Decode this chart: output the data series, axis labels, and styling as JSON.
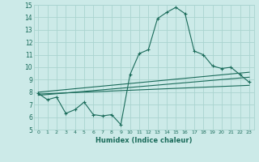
{
  "xlabel": "Humidex (Indice chaleur)",
  "bg_color": "#cceae8",
  "grid_color": "#aad4d0",
  "line_color": "#1a6b5a",
  "xlim": [
    -0.5,
    23.5
  ],
  "ylim": [
    5,
    15
  ],
  "yticks": [
    5,
    6,
    7,
    8,
    9,
    10,
    11,
    12,
    13,
    14,
    15
  ],
  "xticks": [
    0,
    1,
    2,
    3,
    4,
    5,
    6,
    7,
    8,
    9,
    10,
    11,
    12,
    13,
    14,
    15,
    16,
    17,
    18,
    19,
    20,
    21,
    22,
    23
  ],
  "curve1_x": [
    0,
    1,
    2,
    3,
    4,
    5,
    6,
    7,
    8,
    9,
    10,
    11,
    12,
    13,
    14,
    15,
    16,
    17,
    18,
    19,
    20,
    21,
    22,
    23
  ],
  "curve1_y": [
    7.9,
    7.4,
    7.6,
    6.3,
    6.6,
    7.2,
    6.2,
    6.1,
    6.2,
    5.4,
    9.4,
    11.1,
    11.4,
    13.9,
    14.4,
    14.8,
    14.3,
    11.3,
    11.0,
    10.1,
    9.9,
    10.0,
    9.4,
    8.8
  ],
  "line2_x": [
    0,
    23
  ],
  "line2_y": [
    8.0,
    9.6
  ],
  "line3_x": [
    0,
    23
  ],
  "line3_y": [
    7.85,
    8.55
  ],
  "line4_x": [
    0,
    23
  ],
  "line4_y": [
    7.75,
    9.2
  ]
}
